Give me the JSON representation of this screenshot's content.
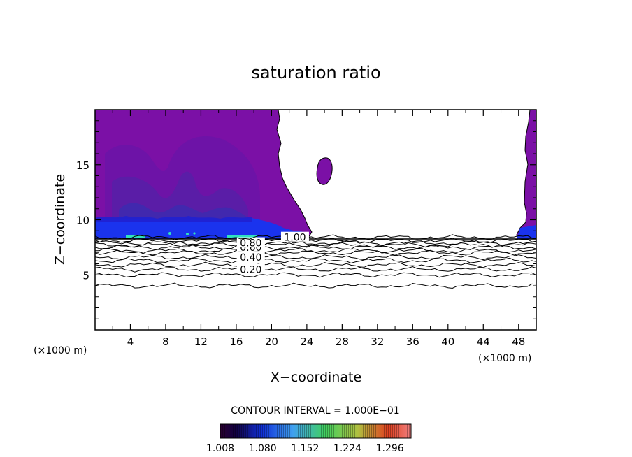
{
  "chart_data": {
    "type": "heatmap",
    "title": "saturation ratio",
    "xlabel": "X−coordinate",
    "ylabel": "Z−coordinate",
    "x_unit_left": "(×1000 m)",
    "x_unit_right": "(×1000 m)",
    "xlim": [
      0,
      50
    ],
    "ylim": [
      0,
      20
    ],
    "x_ticks": [
      4,
      8,
      12,
      16,
      20,
      24,
      28,
      32,
      36,
      40,
      44,
      48
    ],
    "y_ticks": [
      5,
      10,
      15
    ],
    "contour_interval_label": "CONTOUR INTERVAL = 1.000E−01",
    "colorbar": {
      "min": 1.008,
      "max": 1.332,
      "tick_labels": [
        "1.008",
        "1.080",
        "1.152",
        "1.224",
        "1.296"
      ],
      "tick_values": [
        1.008,
        1.08,
        1.152,
        1.224,
        1.296
      ]
    },
    "contours": [
      {
        "level": "0.20",
        "z": 5.5,
        "labeled": true,
        "label_x": 17.5
      },
      {
        "level": "0.40",
        "z": 6.6,
        "labeled": true,
        "label_x": 17.5
      },
      {
        "level": "0.60",
        "z": 7.5,
        "labeled": true,
        "label_x": 17.5
      },
      {
        "level": "0.80",
        "z": 7.9,
        "labeled": true,
        "label_x": 17.5
      },
      {
        "level": "1.00",
        "z": 8.4,
        "labeled": true,
        "label_x": 22.5
      }
    ],
    "unlabeled_contour_z": [
      4.0,
      5.0,
      5.9,
      6.3,
      7.0,
      7.2,
      7.7,
      8.1
    ],
    "annotations": [
      "1.00",
      "0.80",
      "0.60",
      "0.40",
      "0.20"
    ],
    "colors": {
      "background": "#ffffff",
      "supersaturated_fill": "#7b10a6",
      "dense_band": "#1a33ee"
    }
  }
}
